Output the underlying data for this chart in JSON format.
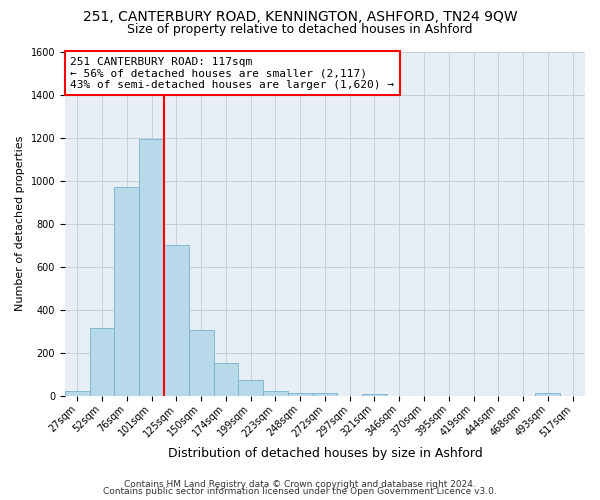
{
  "title": "251, CANTERBURY ROAD, KENNINGTON, ASHFORD, TN24 9QW",
  "subtitle": "Size of property relative to detached houses in Ashford",
  "xlabel": "Distribution of detached houses by size in Ashford",
  "ylabel": "Number of detached properties",
  "categories": [
    "27sqm",
    "52sqm",
    "76sqm",
    "101sqm",
    "125sqm",
    "150sqm",
    "174sqm",
    "199sqm",
    "223sqm",
    "248sqm",
    "272sqm",
    "297sqm",
    "321sqm",
    "346sqm",
    "370sqm",
    "395sqm",
    "419sqm",
    "444sqm",
    "468sqm",
    "493sqm",
    "517sqm"
  ],
  "values": [
    25,
    315,
    970,
    1195,
    700,
    305,
    155,
    75,
    25,
    15,
    15,
    0,
    10,
    0,
    0,
    0,
    0,
    0,
    0,
    15,
    0
  ],
  "bar_color": "#b8d9ea",
  "bar_edgecolor": "#7ab0cc",
  "vline_index": 4,
  "vline_color": "red",
  "annotation_text": "251 CANTERBURY ROAD: 117sqm\n← 56% of detached houses are smaller (2,117)\n43% of semi-detached houses are larger (1,620) →",
  "annotation_box_edgecolor": "red",
  "ylim": [
    0,
    1600
  ],
  "yticks": [
    0,
    200,
    400,
    600,
    800,
    1000,
    1200,
    1400,
    1600
  ],
  "footer1": "Contains HM Land Registry data © Crown copyright and database right 2024.",
  "footer2": "Contains public sector information licensed under the Open Government Licence v3.0.",
  "background_color": "#ffffff",
  "plot_bg_color": "#e8eef5",
  "grid_color": "#c5cfd8",
  "title_fontsize": 10,
  "subtitle_fontsize": 9,
  "xlabel_fontsize": 9,
  "ylabel_fontsize": 8,
  "tick_fontsize": 7,
  "annotation_fontsize": 8,
  "footer_fontsize": 6.5
}
